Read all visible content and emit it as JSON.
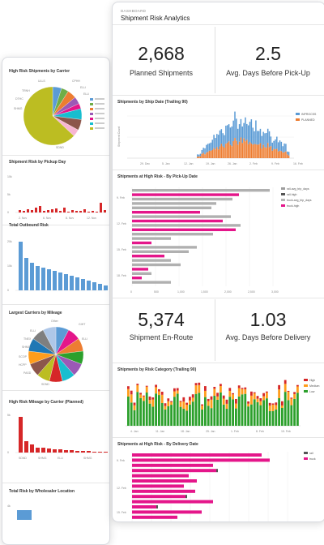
{
  "back": {
    "panel1_title": "High Risk Shipments by Carrier",
    "panel1_labels": [
      "ULLS",
      "CPHH",
      "TRNH",
      "ELLI",
      "ELLI",
      "DTHC",
      "SHMG",
      "SDND"
    ],
    "panel2_title": "Shipment Risk by Pickup Day",
    "panel2_yticks": [
      "10k",
      "5k",
      "0"
    ],
    "panel2_xticks": [
      "2. Nov",
      "6. Nov",
      "8. Nov",
      "12. Nov"
    ],
    "panel3_title": "Total Outbound Risk",
    "panel3_yticks": [
      "20k",
      "10k",
      "0"
    ],
    "panel4_title": "Largest Carriers by Mileage",
    "panel4_labels": [
      "Other",
      "ELLI",
      "ELLI",
      "TNEX",
      "SHMG",
      "SCOP",
      "HCPP",
      "PASD",
      "SDND",
      "GIHT"
    ],
    "panel5_title": "High Risk Mileage by Carrier (Planned)",
    "panel5_yticks": [
      "5k",
      "0"
    ],
    "panel5_xticks": [
      "SDND",
      "SHMG",
      "ELLI",
      "SHMG"
    ],
    "panel6_title": "Total Risk by Wholesaler Location"
  },
  "front": {
    "breadcrumb": "DASHBOARD",
    "title": "Shipment Risk Analytics",
    "kpi1": {
      "value": "2,668",
      "label": "Planned Shipments"
    },
    "kpi2": {
      "value": "2.5",
      "label": "Avg. Days Before Pick-Up"
    },
    "kpi3": {
      "value": "5,374",
      "label": "Shipment En-Route"
    },
    "kpi4": {
      "value": "1.03",
      "label": "Avg. Days Before Delivery"
    },
    "chart1": {
      "title": "Shipments by Ship Date (Trailing 90)",
      "ylabel": "Shipment Count",
      "legend": [
        "INPROCSS",
        "PLANNED"
      ],
      "xticks": [
        "29. Dec",
        "5. Jan",
        "12. Jan",
        "19. Jan",
        "26. Jan",
        "2. Feb",
        "9. Feb",
        "16. Feb"
      ]
    },
    "chart2": {
      "title": "Shipments at High Risk - By Pick-Up Date",
      "legend": [
        "rail-avg_trip_days",
        "rail-high",
        "truck-avg_trip_days",
        "truck-high"
      ],
      "yticks": [
        "9. Feb",
        "12. Feb",
        "15. Feb",
        "18. Feb"
      ],
      "xticks": [
        "0",
        "500",
        "1,000",
        "1,500",
        "2,000",
        "2,500",
        "3,000"
      ]
    },
    "chart3": {
      "title": "Shipments by Risk Category (Trailing 90)",
      "legend": [
        "High",
        "Medium",
        "Low"
      ],
      "xticks": [
        "4. Jan",
        "11. Jan",
        "18. Jan",
        "25. Jan",
        "1. Feb",
        "8. Feb",
        "15. Feb"
      ]
    },
    "chart4": {
      "title": "Shipments at High Risk - By Delivery Date",
      "legend": [
        "rail",
        "truck"
      ],
      "yticks": [
        "9. Feb",
        "12. Feb",
        "15. Feb"
      ]
    },
    "colors": {
      "blue": "#5b9bd5",
      "orange": "#ed7d31",
      "magenta": "#e4168a",
      "grey": "#9e9e9e",
      "darkgrey": "#555555",
      "green": "#2ca02c",
      "red": "#d62728",
      "amber": "#ff9d1c"
    }
  }
}
